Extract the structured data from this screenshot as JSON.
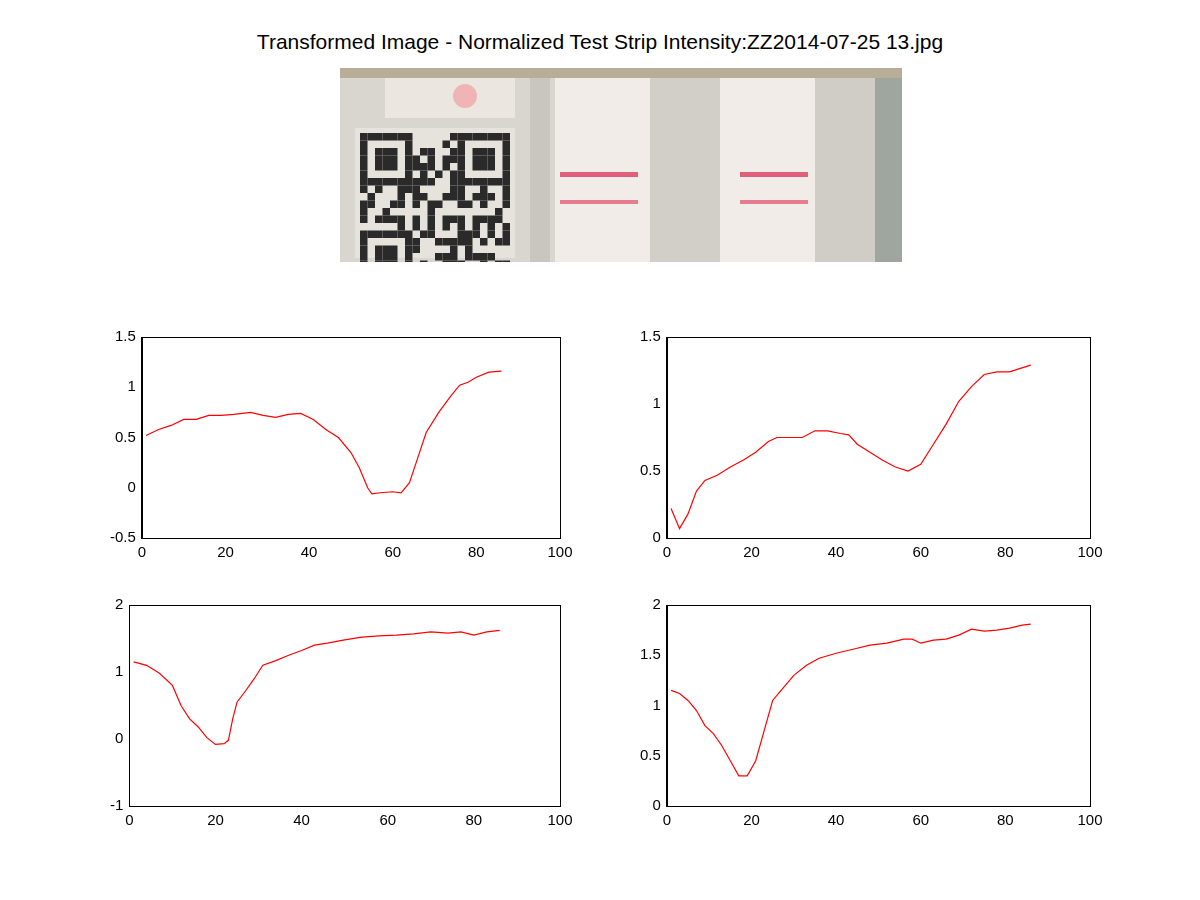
{
  "title": "Transformed Image - Normalized Test Strip Intensity:ZZ2014-07-25 13.jpg",
  "chart_data": [
    {
      "type": "line",
      "color": "#ff0000",
      "grid": false,
      "x": [
        1,
        4,
        7,
        10,
        13,
        16,
        19,
        22,
        26,
        29,
        32,
        35,
        38,
        41,
        44,
        47,
        50,
        52,
        54,
        55,
        57,
        60,
        62,
        64,
        66,
        68,
        71,
        74,
        76,
        78,
        80,
        83,
        86
      ],
      "values": [
        0.52,
        0.58,
        0.62,
        0.68,
        0.68,
        0.72,
        0.72,
        0.73,
        0.75,
        0.72,
        0.7,
        0.73,
        0.74,
        0.68,
        0.58,
        0.5,
        0.35,
        0.2,
        0.0,
        -0.06,
        -0.05,
        -0.04,
        -0.05,
        0.05,
        0.3,
        0.55,
        0.75,
        0.92,
        1.02,
        1.05,
        1.1,
        1.15,
        1.16
      ],
      "xlim": [
        0,
        100
      ],
      "xticks": [
        0,
        20,
        40,
        60,
        80,
        100
      ],
      "ylim": [
        -0.5,
        1.5
      ],
      "yticks": [
        -0.5,
        0,
        0.5,
        1,
        1.5
      ]
    },
    {
      "type": "line",
      "color": "#ff0000",
      "grid": false,
      "x": [
        1,
        3,
        5,
        7,
        9,
        12,
        15,
        18,
        21,
        24,
        26,
        29,
        32,
        35,
        38,
        41,
        43,
        45,
        48,
        51,
        54,
        57,
        60,
        63,
        66,
        69,
        72,
        75,
        78,
        81,
        83,
        86
      ],
      "values": [
        0.22,
        0.07,
        0.18,
        0.35,
        0.43,
        0.47,
        0.53,
        0.58,
        0.64,
        0.72,
        0.75,
        0.75,
        0.75,
        0.8,
        0.8,
        0.78,
        0.77,
        0.7,
        0.64,
        0.58,
        0.53,
        0.5,
        0.55,
        0.7,
        0.85,
        1.02,
        1.13,
        1.22,
        1.24,
        1.24,
        1.26,
        1.29
      ],
      "xlim": [
        0,
        100
      ],
      "xticks": [
        0,
        20,
        40,
        60,
        80,
        100
      ],
      "ylim": [
        0,
        1.5
      ],
      "yticks": [
        0,
        0.5,
        1,
        1.5
      ]
    },
    {
      "type": "line",
      "color": "#ff0000",
      "grid": false,
      "x": [
        1,
        4,
        7,
        10,
        12,
        14,
        16,
        18,
        20,
        22,
        23,
        24,
        25,
        27,
        29,
        31,
        34,
        37,
        40,
        43,
        46,
        50,
        54,
        58,
        62,
        66,
        70,
        74,
        77,
        80,
        83,
        86
      ],
      "values": [
        1.15,
        1.1,
        0.98,
        0.8,
        0.5,
        0.3,
        0.18,
        0.02,
        -0.08,
        -0.07,
        -0.02,
        0.3,
        0.55,
        0.72,
        0.9,
        1.1,
        1.17,
        1.25,
        1.32,
        1.4,
        1.43,
        1.48,
        1.52,
        1.54,
        1.55,
        1.57,
        1.6,
        1.58,
        1.6,
        1.55,
        1.6,
        1.62
      ],
      "xlim": [
        0,
        100
      ],
      "xticks": [
        0,
        20,
        40,
        60,
        80,
        100
      ],
      "ylim": [
        -1,
        2
      ],
      "yticks": [
        -1,
        0,
        1,
        2
      ]
    },
    {
      "type": "line",
      "color": "#ff0000",
      "grid": false,
      "x": [
        1,
        3,
        5,
        7,
        9,
        11,
        13,
        15,
        17,
        19,
        21,
        23,
        25,
        27,
        30,
        33,
        36,
        40,
        44,
        48,
        52,
        56,
        58,
        60,
        63,
        66,
        69,
        72,
        75,
        78,
        81,
        84,
        86
      ],
      "values": [
        1.15,
        1.12,
        1.05,
        0.95,
        0.8,
        0.72,
        0.6,
        0.45,
        0.3,
        0.3,
        0.45,
        0.75,
        1.05,
        1.15,
        1.3,
        1.4,
        1.47,
        1.52,
        1.56,
        1.6,
        1.62,
        1.66,
        1.66,
        1.62,
        1.65,
        1.66,
        1.7,
        1.76,
        1.74,
        1.75,
        1.77,
        1.8,
        1.81
      ],
      "xlim": [
        0,
        100
      ],
      "xticks": [
        0,
        20,
        40,
        60,
        80,
        100
      ],
      "ylim": [
        0,
        2
      ],
      "yticks": [
        0,
        0.5,
        1,
        1.5,
        2
      ]
    }
  ]
}
